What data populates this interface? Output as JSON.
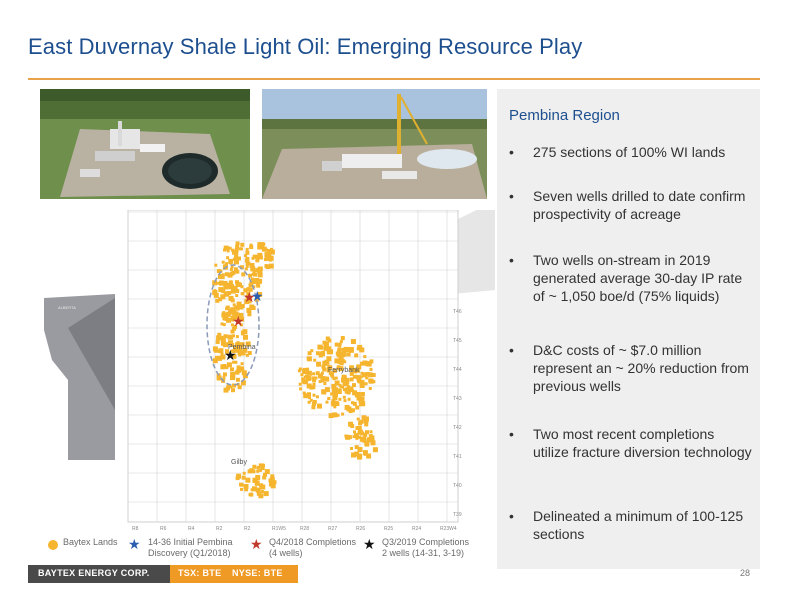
{
  "title": "East Duvernay Shale Light Oil: Emerging Resource Play",
  "panel": {
    "title": "Pembina Region",
    "bullets": [
      "275 sections of 100% WI lands",
      "Seven wells drilled to date confirm prospectivity of acreage",
      "Two wells on-stream in 2019 generated average 30-day IP rate of ~ 1,050 boe/d (75% liquids)",
      "D&C costs of ~ $7.0 million represent an ~ 20% reduction from previous wells",
      "Two most recent completions utilize fracture diversion technology",
      "Delineated a minimum of 100-125 sections"
    ],
    "bullet_glyph": "•"
  },
  "map": {
    "place_labels": [
      "Pembina",
      "Ferrybank",
      "Gilby"
    ],
    "township_labels": [
      "T46",
      "T45",
      "T44",
      "T43",
      "T42",
      "T41",
      "T40",
      "T39"
    ],
    "range_labels": [
      "R8",
      "R6",
      "R4",
      "R2",
      "R2",
      "R1W5",
      "R28",
      "R27",
      "R26",
      "R25",
      "R24",
      "R23W4"
    ],
    "province_label": "ALBERTA",
    "colors": {
      "lands": "#f6b52e",
      "grid": "#d4d4d4",
      "province": "#9a9ba0",
      "ellipse": "#8a9ab8",
      "star_blue": "#2a5db0",
      "star_red": "#c0392b",
      "star_black": "#111111"
    }
  },
  "legend": {
    "lands": "Baytex Lands",
    "initial_line1": "14-36 Initial Pembina",
    "initial_line2": "Discovery (Q1/2018)",
    "q4_line1": "Q4/2018 Completions",
    "q4_line2": "(4 wells)",
    "q3_line1": "Q3/2019 Completions",
    "q3_line2": "2 wells (14-31, 3-19)"
  },
  "footer": {
    "company": "BAYTEX ENERGY CORP.",
    "tsx": "TSX: BTE",
    "nyse": "NYSE: BTE",
    "page": "28"
  }
}
